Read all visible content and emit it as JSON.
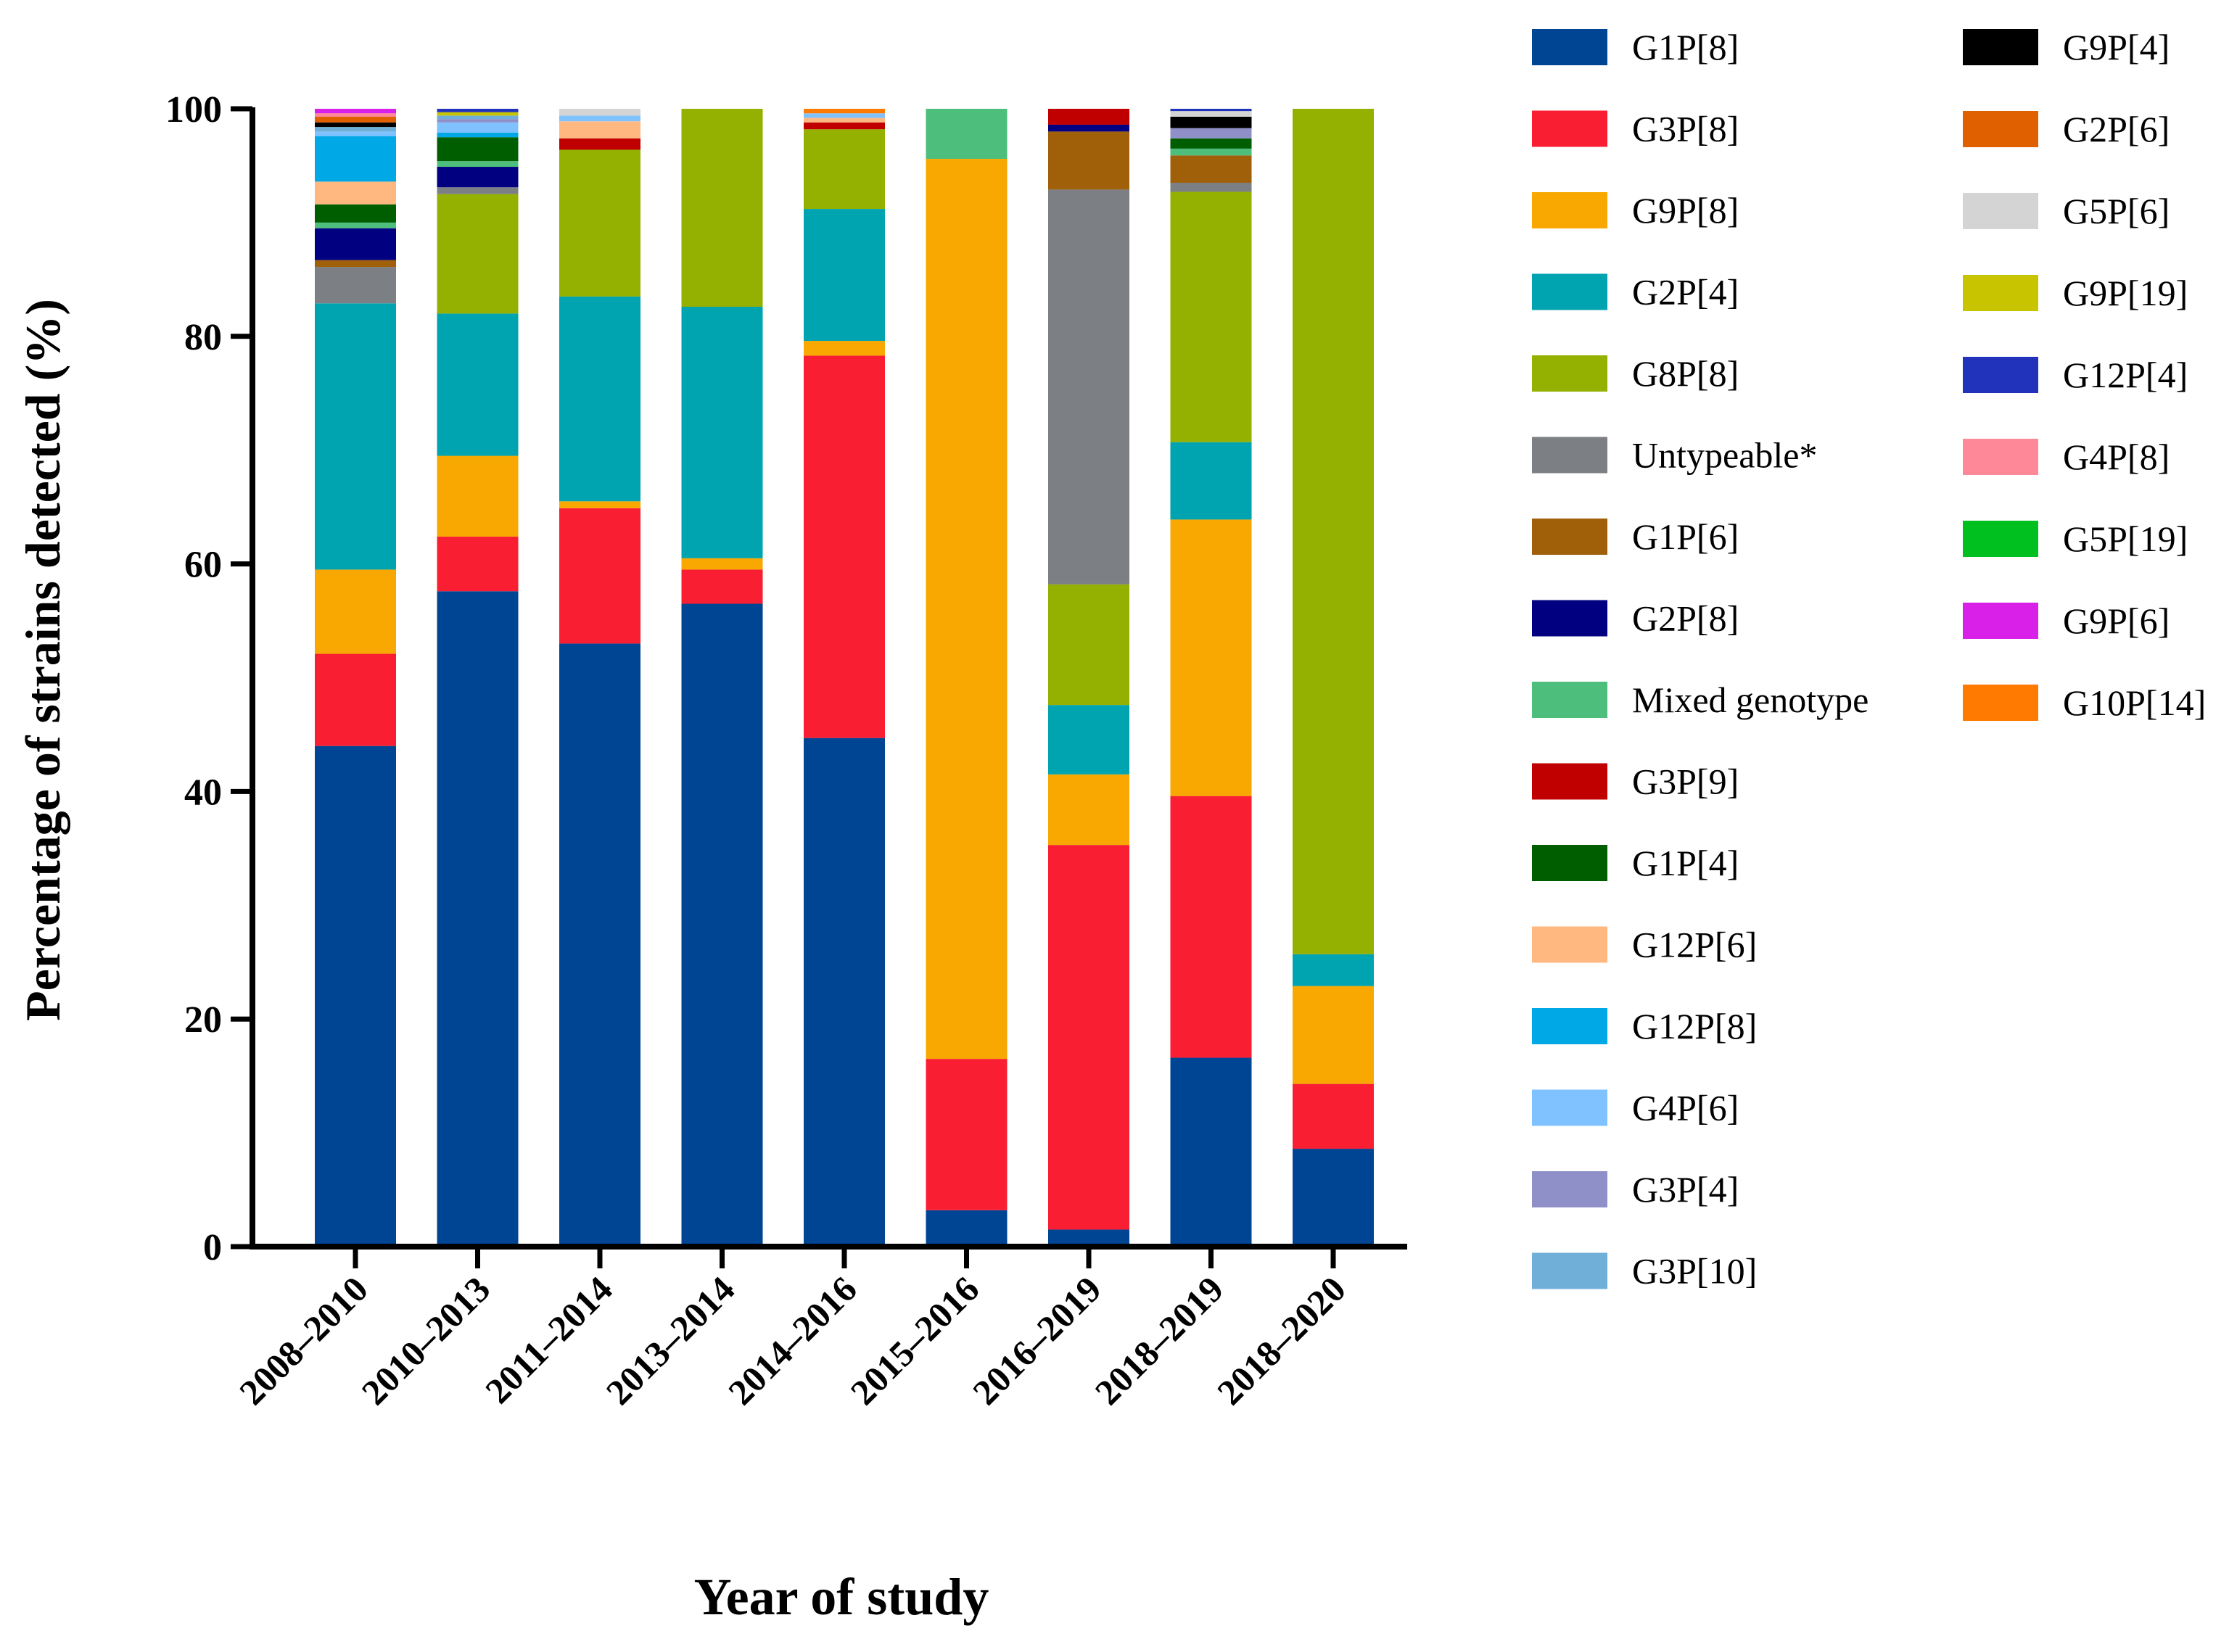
{
  "chart_data": {
    "type": "bar",
    "stacked": true,
    "title": "",
    "xlabel": "Year of study",
    "ylabel": "Percentage of strains detected (%)",
    "ylim": [
      0,
      100
    ],
    "yticks": [
      0,
      20,
      40,
      60,
      80,
      100
    ],
    "grid": false,
    "legend_position": "right",
    "categories": [
      "2008–2010",
      "2010–2013",
      "2011–2014",
      "2013–2014",
      "2014–2016",
      "2015–2016",
      "2016–2019",
      "2018–2019",
      "2018–2020"
    ],
    "series": [
      {
        "name": "G1P[8]",
        "color": "#004494",
        "values": [
          44.0,
          57.6,
          53.0,
          56.5,
          44.7,
          3.2,
          1.5,
          16.6,
          8.6
        ]
      },
      {
        "name": "G3P[8]",
        "color": "#F91E32",
        "values": [
          8.1,
          4.8,
          11.9,
          3.0,
          33.6,
          13.3,
          33.8,
          23.0,
          5.7
        ]
      },
      {
        "name": "G9P[8]",
        "color": "#F8A800",
        "values": [
          7.4,
          7.1,
          0.6,
          1.0,
          1.3,
          79.1,
          6.2,
          24.3,
          8.6
        ]
      },
      {
        "name": "G2P[4]",
        "color": "#00A3B0",
        "values": [
          23.4,
          12.5,
          18.0,
          22.1,
          11.6,
          0,
          6.1,
          6.8,
          2.8
        ]
      },
      {
        "name": "G8P[8]",
        "color": "#94B000",
        "values": [
          0,
          10.5,
          12.9,
          17.4,
          7.0,
          0,
          10.6,
          22.0,
          74.3
        ]
      },
      {
        "name": "Untypeable*",
        "color": "#7C8084",
        "values": [
          3.2,
          0.6,
          0,
          0,
          0,
          0,
          34.7,
          0.8,
          0
        ]
      },
      {
        "name": "G1P[6]",
        "color": "#A0600A",
        "values": [
          0.6,
          0,
          0,
          0,
          0,
          0,
          5.1,
          2.4,
          0
        ]
      },
      {
        "name": "G2P[8]",
        "color": "#000080",
        "values": [
          2.8,
          1.8,
          0,
          0,
          0,
          0,
          0.6,
          0,
          0
        ]
      },
      {
        "name": "Mixed genotype",
        "color": "#4DBE7C",
        "values": [
          0.5,
          0.5,
          0,
          0,
          0,
          4.4,
          0,
          0.6,
          0
        ]
      },
      {
        "name": "G3P[9]",
        "color": "#C00000",
        "values": [
          0,
          0,
          1.0,
          0,
          0.6,
          0,
          1.4,
          0,
          0
        ]
      },
      {
        "name": "G1P[4]",
        "color": "#005E00",
        "values": [
          1.6,
          2.1,
          0,
          0,
          0,
          0,
          0,
          0.9,
          0
        ]
      },
      {
        "name": "G12P[6]",
        "color": "#FFB880",
        "values": [
          2.0,
          0,
          1.5,
          0,
          0.4,
          0,
          0,
          0,
          0
        ]
      },
      {
        "name": "G12P[8]",
        "color": "#00A9E6",
        "values": [
          4.0,
          0.4,
          0,
          0,
          0,
          0,
          0,
          0,
          0
        ]
      },
      {
        "name": "G4P[6]",
        "color": "#80C2FF",
        "values": [
          0.4,
          0.9,
          0.5,
          0,
          0.4,
          0,
          0,
          0,
          0
        ]
      },
      {
        "name": "G3P[4]",
        "color": "#9090C8",
        "values": [
          0,
          0.3,
          0,
          0,
          0,
          0,
          0,
          0.9,
          0
        ]
      },
      {
        "name": "G3P[10]",
        "color": "#70B0D8",
        "values": [
          0.4,
          0.3,
          0,
          0,
          0,
          0,
          0,
          0,
          0
        ]
      },
      {
        "name": "G9P[4]",
        "color": "#000000",
        "values": [
          0.4,
          0,
          0,
          0,
          0,
          0,
          0,
          1.0,
          0
        ]
      },
      {
        "name": "G2P[6]",
        "color": "#E06000",
        "values": [
          0.5,
          0,
          0,
          0,
          0,
          0,
          0,
          0,
          0
        ]
      },
      {
        "name": "G5P[6]",
        "color": "#D4D4D4",
        "values": [
          0,
          0,
          0.6,
          0,
          0,
          0,
          0,
          0.5,
          0
        ]
      },
      {
        "name": "G9P[19]",
        "color": "#C8C400",
        "values": [
          0,
          0.3,
          0,
          0,
          0,
          0,
          0,
          0,
          0
        ]
      },
      {
        "name": "G12P[4]",
        "color": "#2233BB",
        "values": [
          0,
          0.3,
          0,
          0,
          0,
          0,
          0,
          0.2,
          0
        ]
      },
      {
        "name": "G4P[8]",
        "color": "#FF8898",
        "values": [
          0.3,
          0,
          0,
          0,
          0,
          0,
          0,
          0,
          0
        ]
      },
      {
        "name": "G5P[19]",
        "color": "#00C020",
        "values": [
          0,
          0,
          0,
          0,
          0,
          0,
          0,
          0,
          0
        ]
      },
      {
        "name": "G9P[6]",
        "color": "#D820E8",
        "values": [
          0.4,
          0,
          0,
          0,
          0,
          0,
          0,
          0,
          0
        ]
      },
      {
        "name": "G10P[14]",
        "color": "#FF7A00",
        "values": [
          0,
          0,
          0,
          0,
          0.4,
          0,
          0,
          0,
          0
        ]
      }
    ]
  }
}
